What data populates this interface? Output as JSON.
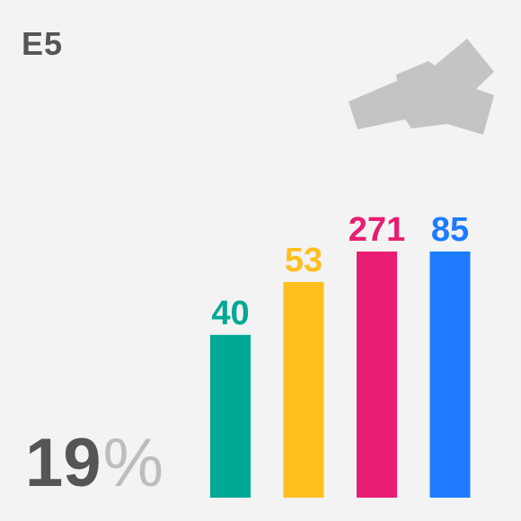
{
  "area_code": "E5",
  "percentage": {
    "value": "19",
    "symbol": "%"
  },
  "colors": {
    "background": "#f3f3f3",
    "text": "#555555",
    "muted": "#bdbdbd",
    "map": "#c4c4c4"
  },
  "chart_data": {
    "type": "bar",
    "title": "",
    "xlabel": "",
    "ylabel": "",
    "categories": [
      "",
      "",
      "",
      ""
    ],
    "values": [
      40,
      53,
      271,
      85
    ],
    "data_labels": [
      "40",
      "53",
      "271",
      "85"
    ],
    "colors": [
      "#00a896",
      "#ffbf1f",
      "#e91e73",
      "#1e7bff"
    ],
    "grid": false,
    "legend": "none"
  }
}
